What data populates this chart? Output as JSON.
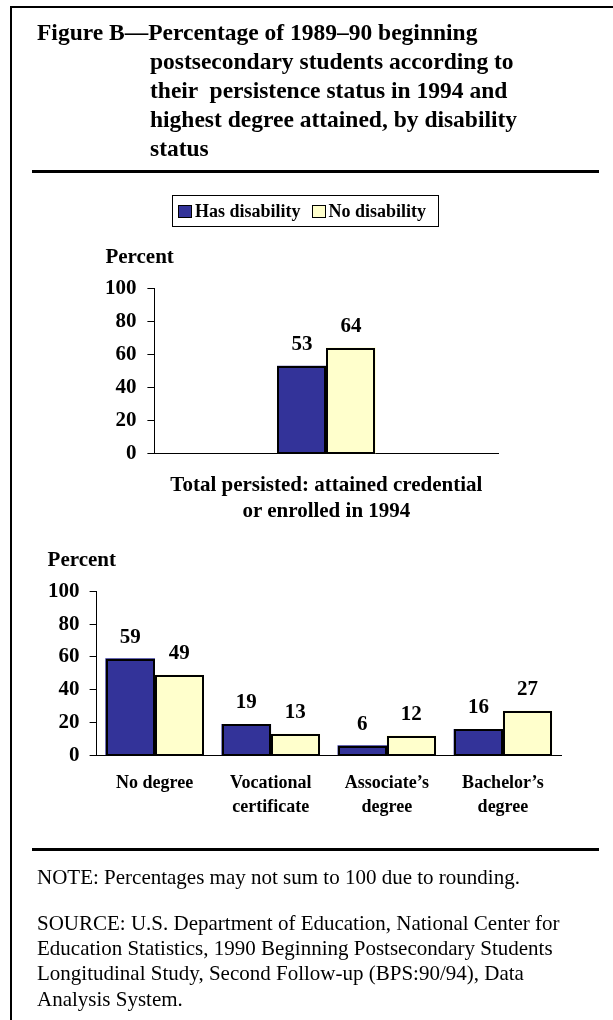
{
  "chart_data": [
    {
      "type": "bar",
      "title": "Figure B—Percentage of 1989–90 beginning postsecondary students according to their  persistence status in 1994 and highest degree attained, by disability status",
      "legend": "top",
      "ylabel": "Percent",
      "categories": [
        "Total persisted: attained credential or enrolled in 1994"
      ],
      "series": [
        {
          "name": "Has disability",
          "color": "#333399",
          "values": [
            53
          ]
        },
        {
          "name": "No disability",
          "color": "#ffffcc",
          "values": [
            64
          ]
        }
      ],
      "ylim": [
        0,
        100
      ],
      "yticks": [
        0,
        20,
        40,
        60,
        80,
        100
      ],
      "data_labels": true
    },
    {
      "type": "bar",
      "ylabel": "Percent",
      "categories": [
        "No degree",
        "Vocational certificate",
        "Associate’s degree",
        "Bachelor’s degree"
      ],
      "series": [
        {
          "color": "#333399",
          "values": [
            59,
            19,
            6,
            16
          ]
        },
        {
          "color": "#ffffcc",
          "values": [
            49,
            13,
            12,
            27
          ]
        }
      ],
      "ylim": [
        0,
        100
      ],
      "yticks": [
        0,
        20,
        40,
        60,
        80,
        100
      ],
      "data_labels": true,
      "annotations": [
        "NOTE: Percentages may not sum to 100 due to rounding.",
        "SOURCE: U.S. Department of Education, National Center for Education Statistics, 1990 Beginning Postsecondary Students Longitudinal Study, Second Follow-up (BPS:90/94), Data Analysis System."
      ]
    }
  ]
}
